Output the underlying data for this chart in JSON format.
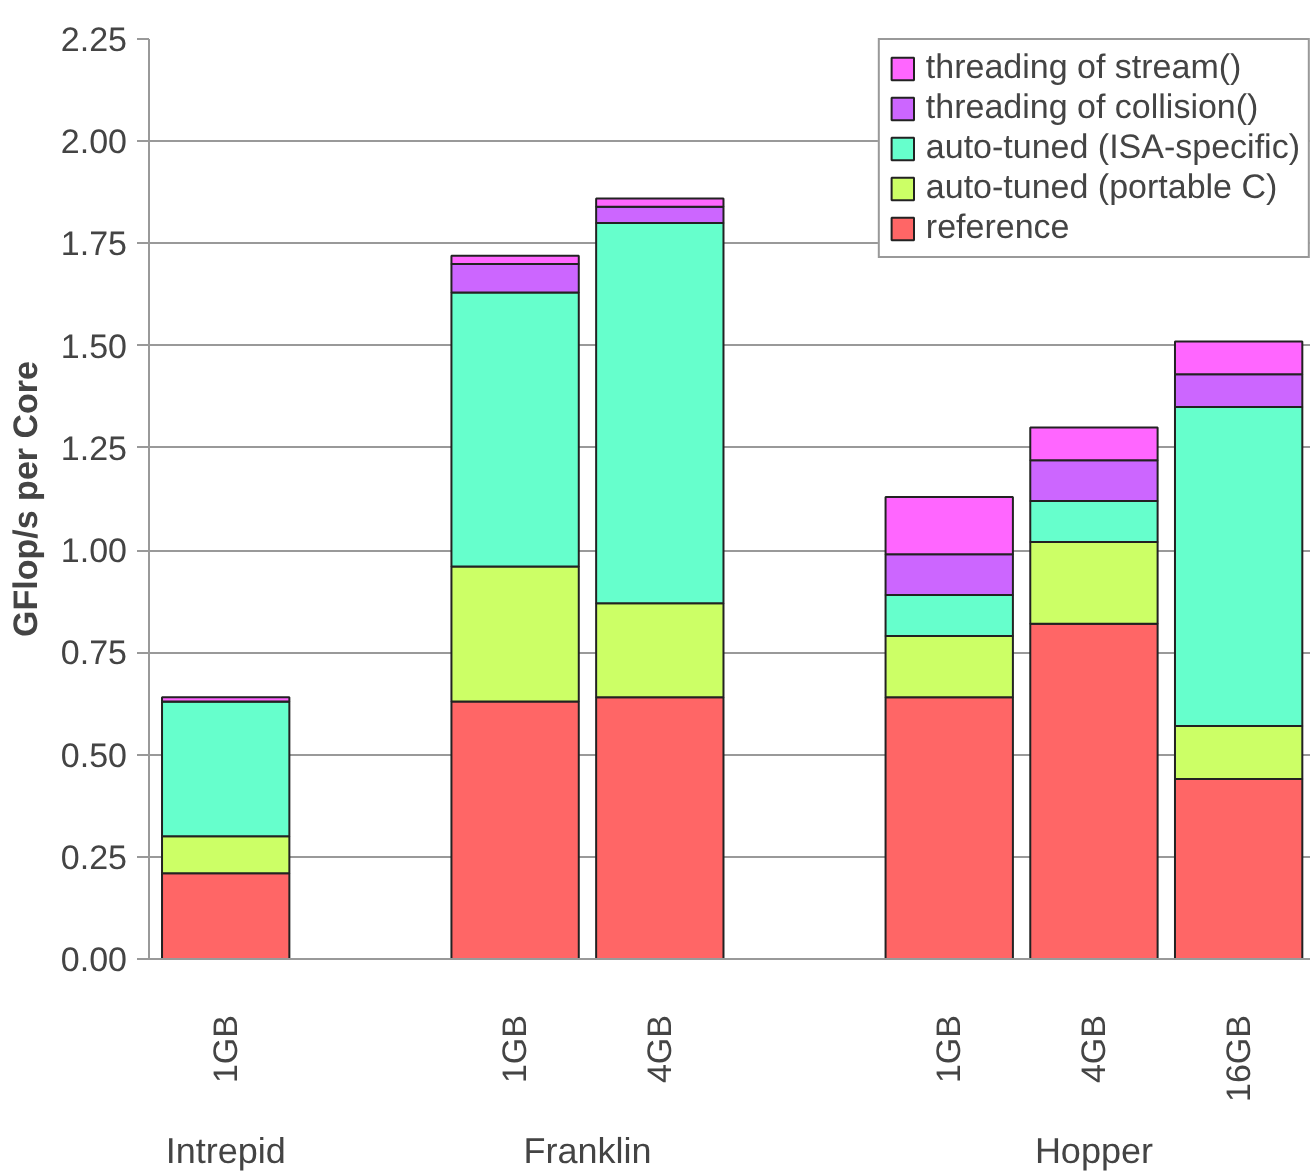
{
  "chart_data": {
    "type": "bar",
    "stacked": true,
    "ylabel": "GFlop/s per Core",
    "categories": [
      "1GB",
      null,
      "1GB",
      "4GB",
      null,
      "1GB",
      "4GB",
      "16GB"
    ],
    "series": [
      {
        "name": "reference",
        "color": "#ff6666",
        "values": [
          0.21,
          null,
          0.63,
          0.64,
          null,
          0.64,
          0.82,
          0.44
        ]
      },
      {
        "name": "auto-tuned (portable C)",
        "color": "#ccff66",
        "values": [
          0.09,
          null,
          0.33,
          0.23,
          null,
          0.15,
          0.2,
          0.13
        ]
      },
      {
        "name": "auto-tuned (ISA-specific)",
        "color": "#66ffcc",
        "values": [
          0.33,
          null,
          0.67,
          0.93,
          null,
          0.1,
          0.1,
          0.78
        ]
      },
      {
        "name": "threading of collision()",
        "color": "#cc66ff",
        "values": [
          0.0,
          null,
          0.07,
          0.04,
          null,
          0.1,
          0.1,
          0.08
        ]
      },
      {
        "name": "threading of stream()",
        "color": "#ff66ff",
        "values": [
          0.01,
          null,
          0.02,
          0.02,
          null,
          0.14,
          0.08,
          0.08
        ]
      }
    ],
    "ylim": [
      0,
      2.25
    ],
    "yticks": [
      {
        "value": 0,
        "label": "0.00"
      },
      {
        "value": 0.25,
        "label": "0.25"
      },
      {
        "value": 0.5,
        "label": "0.50"
      },
      {
        "value": 0.75,
        "label": "0.75"
      },
      {
        "value": 1,
        "label": "1.00"
      },
      {
        "value": 1.25,
        "label": "1.25"
      },
      {
        "value": 1.5,
        "label": "1.50"
      },
      {
        "value": 1.75,
        "label": "1.75"
      },
      {
        "value": 2,
        "label": "2.00"
      },
      {
        "value": 2.25,
        "label": "2.25"
      }
    ],
    "annotations": [
      "Intrepid",
      "Franklin",
      "Hopper"
    ],
    "grid": "y",
    "legend": "top right"
  }
}
